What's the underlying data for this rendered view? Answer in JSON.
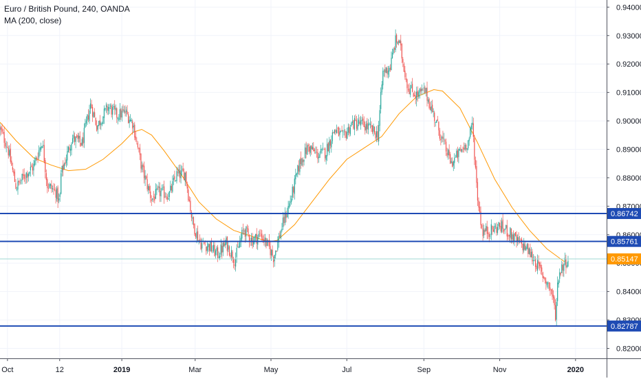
{
  "symbol": {
    "title": "Euro / British Pound, 240, OANDA",
    "indicator": "MA (200, close)"
  },
  "chart_data": {
    "type": "candlestick",
    "title": "Euro / British Pound, 240, OANDA",
    "indicator": "MA (200, close)",
    "ylim": [
      0.8165,
      0.9425
    ],
    "x_range": [
      "2018-09-25",
      "2020-01-26"
    ],
    "x_ticks": [
      {
        "label": "Oct",
        "date": "2018-10-01",
        "bold": false
      },
      {
        "label": "12",
        "date": "2018-11-12",
        "bold": false
      },
      {
        "label": "2019",
        "date": "2019-01-01",
        "bold": true
      },
      {
        "label": "Mar",
        "date": "2019-03-01",
        "bold": false
      },
      {
        "label": "May",
        "date": "2019-05-01",
        "bold": false
      },
      {
        "label": "Jul",
        "date": "2019-07-01",
        "bold": false
      },
      {
        "label": "Sep",
        "date": "2019-09-01",
        "bold": false
      },
      {
        "label": "Nov",
        "date": "2019-11-01",
        "bold": false
      },
      {
        "label": "2020",
        "date": "2020-01-01",
        "bold": true
      }
    ],
    "y_ticks": [
      "0.82000",
      "0.83000",
      "0.84000",
      "0.85000",
      "0.86000",
      "0.87000",
      "0.88000",
      "0.89000",
      "0.90000",
      "0.91000",
      "0.92000",
      "0.93000",
      "0.94000"
    ],
    "horizontal_lines": [
      {
        "value": 0.86742,
        "label": "0.86742",
        "color": "#1e4bb4"
      },
      {
        "value": 0.85761,
        "label": "0.85761",
        "color": "#1e4bb4"
      },
      {
        "value": 0.82787,
        "label": "0.82787",
        "color": "#1e4bb4"
      }
    ],
    "last_price": {
      "value": 0.85147,
      "label": "0.85147",
      "color": "#ff9800"
    },
    "price_path": [
      [
        "2018-09-25",
        0.897
      ],
      [
        "2018-10-01",
        0.891
      ],
      [
        "2018-10-08",
        0.8765
      ],
      [
        "2018-10-15",
        0.881
      ],
      [
        "2018-10-22",
        0.884
      ],
      [
        "2018-10-29",
        0.893
      ],
      [
        "2018-11-02",
        0.8775
      ],
      [
        "2018-11-09",
        0.875
      ],
      [
        "2018-11-12",
        0.871
      ],
      [
        "2018-11-13",
        0.881
      ],
      [
        "2018-11-22",
        0.894
      ],
      [
        "2018-11-30",
        0.892
      ],
      [
        "2018-12-07",
        0.906
      ],
      [
        "2018-12-12",
        0.898
      ],
      [
        "2018-12-21",
        0.905
      ],
      [
        "2018-12-28",
        0.902
      ],
      [
        "2019-01-04",
        0.903
      ],
      [
        "2019-01-10",
        0.899
      ],
      [
        "2019-01-17",
        0.8835
      ],
      [
        "2019-01-25",
        0.8725
      ],
      [
        "2019-01-31",
        0.875
      ],
      [
        "2019-02-08",
        0.874
      ],
      [
        "2019-02-14",
        0.881
      ],
      [
        "2019-02-21",
        0.8815
      ],
      [
        "2019-02-27",
        0.864
      ],
      [
        "2019-03-05",
        0.857
      ],
      [
        "2019-03-12",
        0.856
      ],
      [
        "2019-03-19",
        0.853
      ],
      [
        "2019-03-26",
        0.857
      ],
      [
        "2019-04-02",
        0.851
      ],
      [
        "2019-04-09",
        0.862
      ],
      [
        "2019-04-16",
        0.858
      ],
      [
        "2019-04-23",
        0.86
      ],
      [
        "2019-04-30",
        0.855
      ],
      [
        "2019-05-03",
        0.852
      ],
      [
        "2019-05-10",
        0.863
      ],
      [
        "2019-05-17",
        0.8725
      ],
      [
        "2019-05-24",
        0.885
      ],
      [
        "2019-05-31",
        0.891
      ],
      [
        "2019-06-07",
        0.888
      ],
      [
        "2019-06-14",
        0.889
      ],
      [
        "2019-06-21",
        0.897
      ],
      [
        "2019-06-28",
        0.894
      ],
      [
        "2019-07-05",
        0.899
      ],
      [
        "2019-07-12",
        0.899
      ],
      [
        "2019-07-19",
        0.8975
      ],
      [
        "2019-07-26",
        0.895
      ],
      [
        "2019-07-30",
        0.917
      ],
      [
        "2019-08-05",
        0.919
      ],
      [
        "2019-08-09",
        0.928
      ],
      [
        "2019-08-12",
        0.928
      ],
      [
        "2019-08-19",
        0.912
      ],
      [
        "2019-08-26",
        0.909
      ],
      [
        "2019-09-02",
        0.9105
      ],
      [
        "2019-09-09",
        0.902
      ],
      [
        "2019-09-16",
        0.893
      ],
      [
        "2019-09-23",
        0.885
      ],
      [
        "2019-09-30",
        0.889
      ],
      [
        "2019-10-07",
        0.893
      ],
      [
        "2019-10-10",
        0.899
      ],
      [
        "2019-10-14",
        0.874
      ],
      [
        "2019-10-18",
        0.861
      ],
      [
        "2019-10-25",
        0.8615
      ],
      [
        "2019-11-01",
        0.863
      ],
      [
        "2019-11-08",
        0.861
      ],
      [
        "2019-11-15",
        0.8575
      ],
      [
        "2019-11-22",
        0.8555
      ],
      [
        "2019-11-29",
        0.851
      ],
      [
        "2019-12-06",
        0.8455
      ],
      [
        "2019-12-10",
        0.8425
      ],
      [
        "2019-12-13",
        0.8395
      ],
      [
        "2019-12-16",
        0.8315
      ],
      [
        "2019-12-18",
        0.8455
      ],
      [
        "2019-12-22",
        0.8495
      ],
      [
        "2019-12-26",
        0.8515
      ]
    ],
    "ma_path": [
      [
        "2018-09-25",
        0.8995
      ],
      [
        "2018-10-08",
        0.893
      ],
      [
        "2018-10-22",
        0.887
      ],
      [
        "2018-11-05",
        0.8845
      ],
      [
        "2018-11-19",
        0.8825
      ],
      [
        "2018-12-03",
        0.883
      ],
      [
        "2018-12-17",
        0.8865
      ],
      [
        "2019-01-01",
        0.892
      ],
      [
        "2019-01-10",
        0.896
      ],
      [
        "2019-01-17",
        0.897
      ],
      [
        "2019-01-25",
        0.895
      ],
      [
        "2019-02-04",
        0.8895
      ],
      [
        "2019-02-18",
        0.881
      ],
      [
        "2019-03-04",
        0.8715
      ],
      [
        "2019-03-18",
        0.8655
      ],
      [
        "2019-04-01",
        0.8615
      ],
      [
        "2019-04-15",
        0.8595
      ],
      [
        "2019-04-29",
        0.8575
      ],
      [
        "2019-05-06",
        0.858
      ],
      [
        "2019-05-20",
        0.8635
      ],
      [
        "2019-06-03",
        0.8715
      ],
      [
        "2019-06-17",
        0.8795
      ],
      [
        "2019-07-01",
        0.8865
      ],
      [
        "2019-07-15",
        0.8905
      ],
      [
        "2019-07-29",
        0.8945
      ],
      [
        "2019-08-12",
        0.9025
      ],
      [
        "2019-08-26",
        0.9085
      ],
      [
        "2019-09-09",
        0.911
      ],
      [
        "2019-09-16",
        0.9105
      ],
      [
        "2019-09-30",
        0.9045
      ],
      [
        "2019-10-14",
        0.8925
      ],
      [
        "2019-10-28",
        0.8795
      ],
      [
        "2019-11-11",
        0.8695
      ],
      [
        "2019-11-25",
        0.8615
      ],
      [
        "2019-12-09",
        0.855
      ],
      [
        "2019-12-23",
        0.8505
      ]
    ]
  }
}
